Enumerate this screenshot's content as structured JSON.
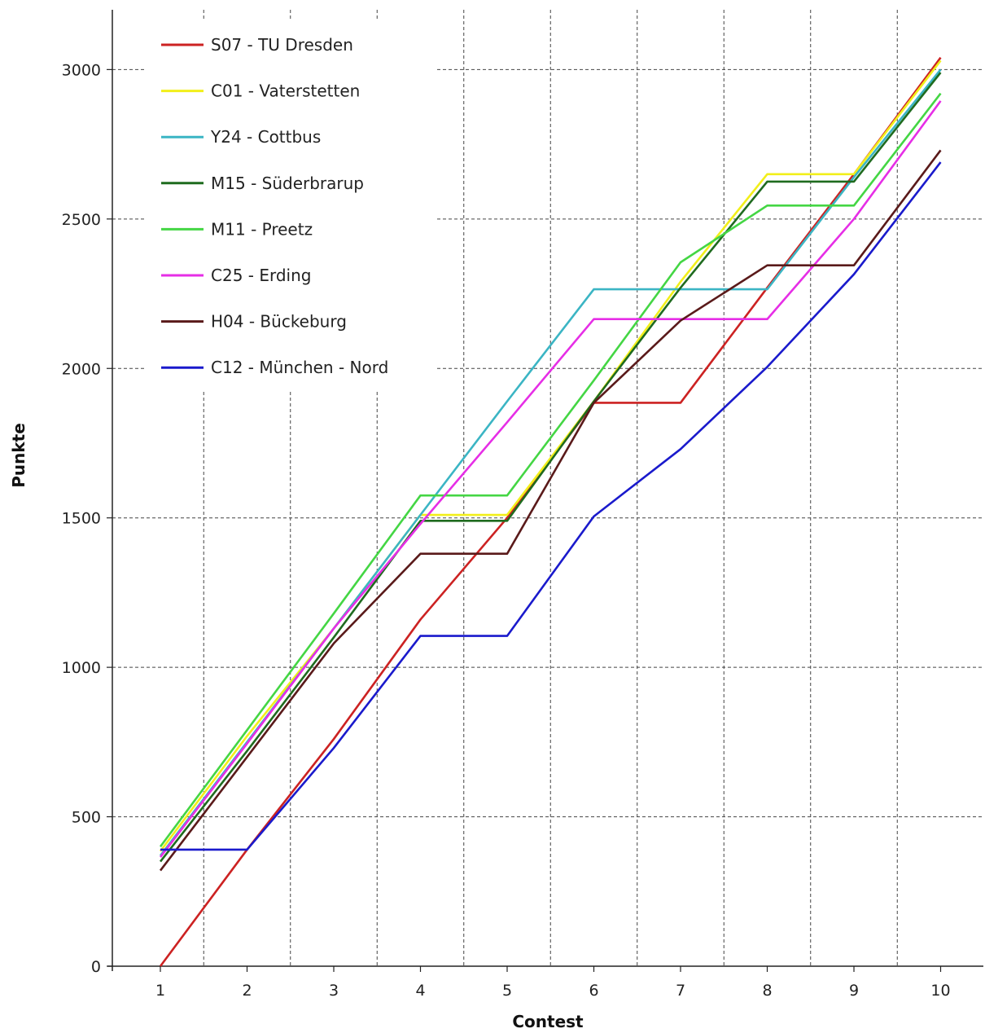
{
  "chart_data": {
    "type": "line",
    "title": "",
    "xlabel": "Contest",
    "ylabel": "Punkte",
    "x": [
      1,
      2,
      3,
      4,
      5,
      6,
      7,
      8,
      9,
      10
    ],
    "ylim": [
      0,
      3200
    ],
    "yticks": [
      0,
      500,
      1000,
      1500,
      2000,
      2500,
      3000
    ],
    "grid": true,
    "legend_position": "top-left",
    "series": [
      {
        "name": "S07 - TU Dresden",
        "color": "#cc2222",
        "values": [
          0,
          390,
          760,
          1160,
          1500,
          1885,
          1885,
          2270,
          2650,
          3040
        ]
      },
      {
        "name": "C01 - Vaterstetten",
        "color": "#f2ef1a",
        "values": [
          385,
          770,
          1130,
          1510,
          1510,
          1890,
          2290,
          2650,
          2650,
          3030
        ]
      },
      {
        "name": "Y24 - Cottbus",
        "color": "#3bb5c4",
        "values": [
          370,
          750,
          1130,
          1510,
          1890,
          2265,
          2265,
          2265,
          2640,
          3000
        ]
      },
      {
        "name": "M15 - Süderbrarup",
        "color": "#1f6b1f",
        "values": [
          350,
          720,
          1100,
          1490,
          1490,
          1890,
          2270,
          2625,
          2625,
          2990
        ]
      },
      {
        "name": "M11 - Preetz",
        "color": "#44d644",
        "values": [
          400,
          790,
          1180,
          1575,
          1575,
          1960,
          2355,
          2545,
          2545,
          2920
        ]
      },
      {
        "name": "C25 - Erding",
        "color": "#e62ee6",
        "values": [
          365,
          745,
          1130,
          1480,
          1820,
          2165,
          2165,
          2165,
          2500,
          2895
        ]
      },
      {
        "name": "H04 - Bückeburg",
        "color": "#5a1a1a",
        "values": [
          320,
          700,
          1080,
          1380,
          1380,
          1885,
          2160,
          2345,
          2345,
          2730
        ]
      },
      {
        "name": "C12 - München - Nord",
        "color": "#1a1acc",
        "values": [
          390,
          390,
          730,
          1105,
          1105,
          1505,
          1730,
          2005,
          2315,
          2690
        ]
      }
    ]
  }
}
